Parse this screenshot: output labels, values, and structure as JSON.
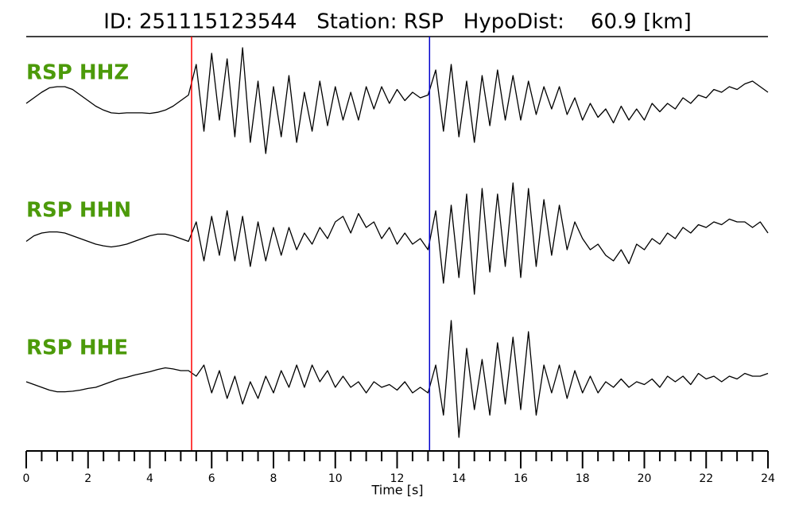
{
  "chart_data": {
    "type": "line",
    "title": "ID: 251115123544   Station: RSP   HypoDist:    60.9 [km]",
    "xlabel": "Time [s]",
    "xlim": [
      0,
      24
    ],
    "xticks": [
      0,
      2,
      4,
      6,
      8,
      10,
      12,
      14,
      16,
      18,
      20,
      22,
      24
    ],
    "xticks_minor": [
      0.5,
      1,
      1.5,
      2.5,
      3,
      3.5,
      4.5,
      5,
      5.5,
      6.5,
      7,
      7.5,
      8.5,
      9,
      9.5,
      10.5,
      11,
      11.5,
      12.5,
      13,
      13.5,
      14.5,
      15,
      15.5,
      16.5,
      17,
      17.5,
      18.5,
      19,
      19.5,
      20.5,
      21,
      21.5,
      22.5,
      23,
      23.5
    ],
    "ylim": [
      -1,
      1
    ],
    "label_color": "#4c9a0a",
    "picks": [
      {
        "x": 5.35,
        "color": "#ff0000"
      },
      {
        "x": 13.05,
        "color": "#0000cc"
      }
    ],
    "x": [
      0,
      0.25,
      0.5,
      0.75,
      1,
      1.25,
      1.5,
      1.75,
      2,
      2.25,
      2.5,
      2.75,
      3,
      3.25,
      3.5,
      3.75,
      4,
      4.25,
      4.5,
      4.75,
      5,
      5.25,
      5.5,
      5.75,
      6,
      6.25,
      6.5,
      6.75,
      7,
      7.25,
      7.5,
      7.75,
      8,
      8.25,
      8.5,
      8.75,
      9,
      9.25,
      9.5,
      9.75,
      10,
      10.25,
      10.5,
      10.75,
      11,
      11.25,
      11.5,
      11.75,
      12,
      12.25,
      12.5,
      12.75,
      13,
      13.25,
      13.5,
      13.75,
      14,
      14.25,
      14.5,
      14.75,
      15,
      15.25,
      15.5,
      15.75,
      16,
      16.25,
      16.5,
      16.75,
      17,
      17.25,
      17.5,
      17.75,
      18,
      18.25,
      18.5,
      18.75,
      19,
      19.25,
      19.5,
      19.75,
      20,
      20.25,
      20.5,
      20.75,
      21,
      21.25,
      21.5,
      21.75,
      22,
      22.25,
      22.5,
      22.75,
      23,
      23.25,
      23.5,
      23.75,
      24
    ],
    "series": [
      {
        "name": "RSP HHZ",
        "color": "#000000",
        "values": [
          0,
          0.1,
          0.2,
          0.28,
          0.3,
          0.3,
          0.25,
          0.15,
          0.05,
          -0.05,
          -0.12,
          -0.17,
          -0.18,
          -0.17,
          -0.17,
          -0.17,
          -0.18,
          -0.16,
          -0.12,
          -0.05,
          0.05,
          0.15,
          0.7,
          -0.5,
          0.9,
          -0.3,
          0.8,
          -0.6,
          1.0,
          -0.7,
          0.4,
          -0.9,
          0.3,
          -0.6,
          0.5,
          -0.7,
          0.2,
          -0.5,
          0.4,
          -0.4,
          0.3,
          -0.3,
          0.2,
          -0.3,
          0.3,
          -0.1,
          0.3,
          0.0,
          0.25,
          0.05,
          0.2,
          0.1,
          0.15,
          0.6,
          -0.5,
          0.7,
          -0.6,
          0.4,
          -0.7,
          0.5,
          -0.4,
          0.6,
          -0.3,
          0.5,
          -0.3,
          0.4,
          -0.2,
          0.3,
          -0.1,
          0.3,
          -0.2,
          0.1,
          -0.3,
          0.0,
          -0.25,
          -0.1,
          -0.35,
          -0.05,
          -0.3,
          -0.1,
          -0.3,
          0.0,
          -0.15,
          0.0,
          -0.1,
          0.1,
          0.0,
          0.15,
          0.1,
          0.25,
          0.2,
          0.3,
          0.25,
          0.35,
          0.4,
          0.3,
          0.2
        ]
      },
      {
        "name": "RSP HHN",
        "color": "#000000",
        "values": [
          -0.05,
          0.05,
          0.1,
          0.12,
          0.12,
          0.1,
          0.05,
          0.0,
          -0.05,
          -0.1,
          -0.13,
          -0.15,
          -0.13,
          -0.1,
          -0.05,
          0.0,
          0.05,
          0.08,
          0.08,
          0.05,
          0.0,
          -0.05,
          0.3,
          -0.4,
          0.4,
          -0.3,
          0.5,
          -0.4,
          0.4,
          -0.5,
          0.3,
          -0.4,
          0.2,
          -0.3,
          0.2,
          -0.2,
          0.1,
          -0.1,
          0.2,
          0.0,
          0.3,
          0.4,
          0.1,
          0.45,
          0.2,
          0.3,
          0.0,
          0.2,
          -0.1,
          0.1,
          -0.1,
          0.0,
          -0.2,
          0.5,
          -0.8,
          0.6,
          -0.7,
          0.8,
          -1.0,
          0.9,
          -0.6,
          0.8,
          -0.5,
          1.0,
          -0.7,
          0.9,
          -0.5,
          0.7,
          -0.3,
          0.6,
          -0.2,
          0.3,
          0.0,
          -0.2,
          -0.1,
          -0.3,
          -0.4,
          -0.2,
          -0.45,
          -0.1,
          -0.2,
          0.0,
          -0.1,
          0.1,
          0.0,
          0.2,
          0.1,
          0.25,
          0.2,
          0.3,
          0.25,
          0.35,
          0.3,
          0.3,
          0.2,
          0.3,
          0.1
        ]
      },
      {
        "name": "RSP HHE",
        "color": "#000000",
        "values": [
          0.0,
          -0.05,
          -0.1,
          -0.15,
          -0.18,
          -0.18,
          -0.17,
          -0.15,
          -0.12,
          -0.1,
          -0.05,
          0.0,
          0.05,
          0.08,
          0.12,
          0.15,
          0.18,
          0.22,
          0.25,
          0.23,
          0.2,
          0.2,
          0.1,
          0.3,
          -0.2,
          0.2,
          -0.3,
          0.1,
          -0.4,
          0.0,
          -0.3,
          0.1,
          -0.2,
          0.2,
          -0.1,
          0.3,
          -0.1,
          0.3,
          0.0,
          0.2,
          -0.1,
          0.1,
          -0.1,
          0.0,
          -0.2,
          0.0,
          -0.1,
          -0.05,
          -0.15,
          0.0,
          -0.2,
          -0.1,
          -0.2,
          0.3,
          -0.6,
          1.1,
          -1.0,
          0.6,
          -0.5,
          0.4,
          -0.6,
          0.7,
          -0.4,
          0.8,
          -0.5,
          0.9,
          -0.6,
          0.3,
          -0.2,
          0.3,
          -0.3,
          0.2,
          -0.2,
          0.1,
          -0.2,
          0.0,
          -0.1,
          0.05,
          -0.1,
          0.0,
          -0.05,
          0.05,
          -0.1,
          0.1,
          0.0,
          0.1,
          -0.05,
          0.15,
          0.05,
          0.1,
          0.0,
          0.1,
          0.05,
          0.15,
          0.1,
          0.1,
          0.15
        ]
      }
    ]
  }
}
